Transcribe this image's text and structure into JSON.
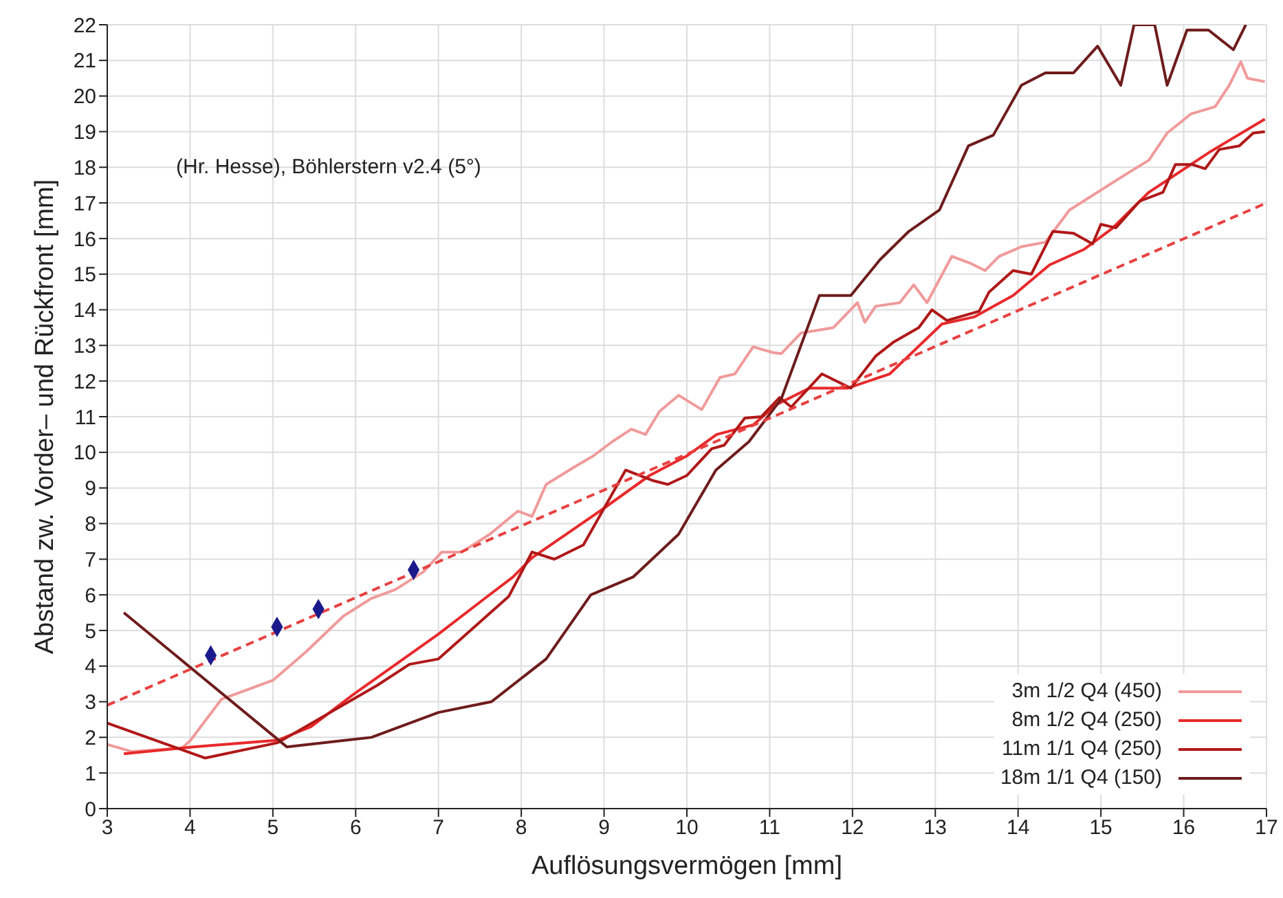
{
  "chart_data": {
    "type": "line",
    "xlabel": "Auflösungsvermögen [mm]",
    "ylabel": "Abstand zw. Vorder– und Rückfront [mm]",
    "annotations": [
      "(Hr. Hesse), Böhlerstern v2.4 (5°)"
    ],
    "xlim": [
      3,
      17
    ],
    "xticks": [
      3,
      4,
      5,
      6,
      7,
      8,
      9,
      10,
      11,
      12,
      13,
      14,
      15,
      16,
      17
    ],
    "ylim": [
      0,
      22
    ],
    "yticks": [
      0,
      1,
      2,
      3,
      4,
      5,
      6,
      7,
      8,
      9,
      10,
      11,
      12,
      13,
      14,
      15,
      16,
      17,
      18,
      19,
      20,
      21,
      22
    ],
    "grid": true,
    "legend": "bottom right",
    "marker": "none",
    "series": [
      {
        "name": "3m 1/2 Q4 (450)",
        "color": "#f09a9a",
        "x": [
          3.0,
          3.3,
          3.9,
          4.0,
          4.38,
          5.0,
          5.4,
          5.85,
          6.19,
          6.48,
          6.82,
          7.04,
          7.28,
          7.62,
          7.96,
          8.13,
          8.3,
          8.65,
          8.87,
          9.1,
          9.33,
          9.5,
          9.67,
          9.9,
          10.18,
          10.4,
          10.58,
          10.8,
          11.04,
          11.14,
          11.38,
          11.77,
          12.06,
          12.15,
          12.28,
          12.57,
          12.74,
          12.9,
          13.2,
          13.43,
          13.6,
          13.77,
          14.04,
          14.33,
          14.62,
          15.3,
          15.58,
          15.8,
          16.09,
          16.38,
          16.55,
          16.69,
          16.77,
          16.98
        ],
        "values": [
          1.8,
          1.6,
          1.7,
          1.9,
          3.07,
          3.6,
          4.4,
          5.4,
          5.9,
          6.15,
          6.65,
          7.2,
          7.2,
          7.7,
          8.35,
          8.2,
          9.1,
          9.6,
          9.9,
          10.3,
          10.65,
          10.5,
          11.15,
          11.6,
          11.2,
          12.1,
          12.2,
          12.96,
          12.8,
          12.77,
          13.35,
          13.5,
          14.2,
          13.65,
          14.1,
          14.2,
          14.7,
          14.2,
          15.5,
          15.3,
          15.1,
          15.5,
          15.77,
          15.9,
          16.8,
          17.8,
          18.2,
          18.96,
          19.5,
          19.7,
          20.3,
          20.96,
          20.5,
          20.4
        ]
      },
      {
        "name": "8m 1/2 Q4 (250)",
        "color": "#e8292b",
        "x": [
          3.2,
          4.04,
          5.06,
          5.46,
          5.97,
          6.43,
          7.0,
          7.56,
          7.9,
          8.13,
          8.98,
          9.55,
          10.0,
          10.36,
          10.8,
          11.09,
          11.48,
          11.94,
          12.45,
          13.08,
          13.47,
          13.94,
          14.38,
          14.8,
          15.13,
          15.58,
          16.33,
          16.98
        ],
        "values": [
          1.54,
          1.73,
          1.92,
          2.3,
          3.2,
          3.96,
          4.9,
          5.9,
          6.5,
          7.04,
          8.4,
          9.35,
          9.9,
          10.5,
          10.77,
          11.35,
          11.8,
          11.8,
          12.2,
          13.6,
          13.8,
          14.4,
          15.26,
          15.7,
          16.27,
          17.3,
          18.45,
          19.35
        ]
      },
      {
        "name": "11m 1/1 Q4 (250)",
        "color": "#b01818",
        "x": [
          3.0,
          4.18,
          5.06,
          6.26,
          6.65,
          7.0,
          7.85,
          8.13,
          8.4,
          8.75,
          9.26,
          9.6,
          9.77,
          10.0,
          10.3,
          10.45,
          10.7,
          10.9,
          11.12,
          11.26,
          11.63,
          11.98,
          12.28,
          12.5,
          12.8,
          12.96,
          13.14,
          13.53,
          13.65,
          13.94,
          14.16,
          14.42,
          14.67,
          14.9,
          15.0,
          15.18,
          15.47,
          15.75,
          15.9,
          16.1,
          16.26,
          16.43,
          16.67,
          16.84,
          16.98
        ],
        "values": [
          2.4,
          1.42,
          1.85,
          3.46,
          4.05,
          4.2,
          5.96,
          7.2,
          7.0,
          7.4,
          9.5,
          9.2,
          9.1,
          9.35,
          10.1,
          10.2,
          10.96,
          11.0,
          11.54,
          11.27,
          12.2,
          11.8,
          12.7,
          13.1,
          13.5,
          14.0,
          13.7,
          13.96,
          14.5,
          15.1,
          15.0,
          16.2,
          16.15,
          15.85,
          16.4,
          16.3,
          17.05,
          17.3,
          18.08,
          18.08,
          17.96,
          18.5,
          18.6,
          18.96,
          19.0
        ]
      },
      {
        "name": "18m 1/1 Q4 (150)",
        "color": "#6e1c1c",
        "x": [
          3.2,
          5.17,
          6.19,
          7.0,
          7.64,
          8.3,
          8.84,
          9.35,
          9.9,
          10.35,
          10.75,
          11.14,
          11.6,
          11.98,
          12.33,
          12.68,
          13.05,
          13.4,
          13.7,
          14.04,
          14.33,
          14.67,
          14.96,
          15.24,
          15.4,
          15.65,
          15.8,
          16.04,
          16.3,
          16.6,
          16.75
        ],
        "values": [
          5.5,
          1.73,
          2.0,
          2.7,
          3.0,
          4.2,
          6.0,
          6.5,
          7.7,
          9.5,
          10.3,
          11.5,
          14.4,
          14.4,
          15.4,
          16.2,
          16.8,
          18.6,
          18.9,
          20.3,
          20.65,
          20.65,
          21.4,
          20.3,
          22,
          22,
          20.3,
          21.85,
          21.85,
          21.3,
          22
        ]
      },
      {
        "type": "line",
        "color": "#e84040",
        "line_style": "dashed",
        "x": [
          3,
          17
        ],
        "values": [
          2.9,
          17.0
        ]
      },
      {
        "type": "scatter",
        "color": "#1a1a8c",
        "marker": "diamond",
        "x": [
          4.25,
          5.05,
          5.55,
          6.7
        ],
        "values": [
          4.3,
          5.1,
          5.6,
          6.7
        ]
      }
    ]
  }
}
